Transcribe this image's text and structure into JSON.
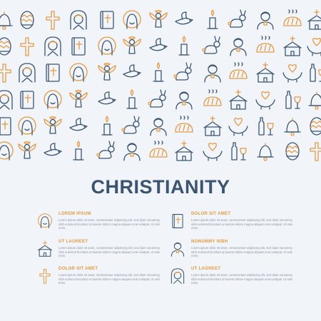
{
  "title": "CHRISTIANITY",
  "colors": {
    "background": "#f1f4f8",
    "outline": "#3b5570",
    "accent": "#e29a45"
  },
  "pattern_icons": [
    "bell-icon",
    "easter-egg-icon",
    "cross-icon",
    "nun-icon",
    "bible-icon",
    "jesus-icon",
    "angel-icon",
    "dove-icon",
    "candle-icon",
    "rabbit-icon",
    "priest-icon",
    "bread-icon",
    "church-icon",
    "heart-hands-icon",
    "wine-icon"
  ],
  "features_left": [
    {
      "icon": "jesus-icon",
      "heading": "LOREM IPSUM",
      "body": "Lorem ipsum dolor sit amet, consectetuer adipiscing elit, sed diam nonummy nibh euismod tincidunt ut laoreet dolore magna aliquam erat volutpat. Ut wisi enim."
    },
    {
      "icon": "church-icon",
      "heading": "UT LAOREET",
      "body": "Lorem ipsum dolor sit amet, consectetuer adipiscing elit, sed diam nonummy nibh euismod tincidunt ut laoreet dolore magna aliquam erat volutpat. Ut wisi enim."
    },
    {
      "icon": "cross-icon",
      "heading": "DOLOR SIT AMET",
      "body": "Lorem ipsum dolor sit amet, consectetuer adipiscing elit, sed diam nonummy nibh euismod tincidunt ut laoreet dolore magna aliquam erat volutpat. Ut wisi enim."
    }
  ],
  "features_right": [
    {
      "icon": "bible-icon",
      "heading": "DOLOR SIT AMET",
      "body": "Lorem ipsum dolor sit amet, consectetuer adipiscing elit, sed diam nonummy nibh euismod tincidunt ut laoreet dolore magna aliquam erat volutpat. Ut wisi enim."
    },
    {
      "icon": "priest-icon",
      "heading": "NONUMMY NIBH",
      "body": "Lorem ipsum dolor sit amet, consectetuer adipiscing elit, sed diam nonummy nibh euismod tincidunt ut laoreet dolore magna aliquam erat volutpat. Ut wisi enim."
    },
    {
      "icon": "nun-icon",
      "heading": "UT LAOREET",
      "body": "Lorem ipsum dolor sit amet, consectetuer adipiscing elit, sed diam nonummy nibh euismod tincidunt ut laoreet dolore magna aliquam erat volutpat. Ut wisi enim."
    }
  ]
}
